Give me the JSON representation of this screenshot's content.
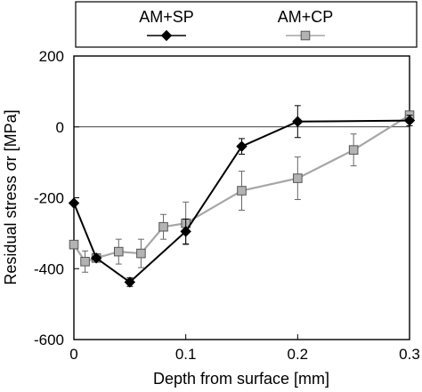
{
  "chart_data": {
    "type": "line",
    "xlabel": "Depth from surface [mm]",
    "ylabel": "Residual stress σr [MPa]",
    "xlim": [
      0,
      0.3
    ],
    "ylim": [
      -600,
      200
    ],
    "x_ticks": [
      {
        "value": 0,
        "label": "0"
      },
      {
        "value": 0.1,
        "label": "0.1"
      },
      {
        "value": 0.2,
        "label": "0.2"
      },
      {
        "value": 0.3,
        "label": "0.3"
      }
    ],
    "y_ticks": [
      {
        "value": 200,
        "label": "200"
      },
      {
        "value": 0,
        "label": "0"
      },
      {
        "value": -200,
        "label": "-200"
      },
      {
        "value": -400,
        "label": "-400"
      },
      {
        "value": -600,
        "label": "-600"
      }
    ],
    "grid": false,
    "zero_line": true,
    "legend_position": "top",
    "series": [
      {
        "name": "AM+SP",
        "marker": "diamond",
        "line_color": "#000000",
        "marker_fill": "#000000",
        "points": [
          {
            "x": 0,
            "y": -215,
            "err": 0
          },
          {
            "x": 0.02,
            "y": -370,
            "err": 0
          },
          {
            "x": 0.05,
            "y": -438,
            "err": 12
          },
          {
            "x": 0.1,
            "y": -295,
            "err": 35
          },
          {
            "x": 0.15,
            "y": -55,
            "err": 22
          },
          {
            "x": 0.2,
            "y": 15,
            "err": 45
          },
          {
            "x": 0.3,
            "y": 18,
            "err": 15
          }
        ]
      },
      {
        "name": "AM+CP",
        "marker": "square",
        "line_color": "#a6a6a6",
        "marker_fill": "#b3b3b3",
        "points": [
          {
            "x": 0,
            "y": -332,
            "err": 0
          },
          {
            "x": 0.01,
            "y": -380,
            "err": 30
          },
          {
            "x": 0.02,
            "y": -370,
            "err": 0
          },
          {
            "x": 0.04,
            "y": -352,
            "err": 35
          },
          {
            "x": 0.06,
            "y": -357,
            "err": 40
          },
          {
            "x": 0.08,
            "y": -282,
            "err": 35
          },
          {
            "x": 0.1,
            "y": -272,
            "err": 60
          },
          {
            "x": 0.15,
            "y": -180,
            "err": 55
          },
          {
            "x": 0.2,
            "y": -145,
            "err": 60
          },
          {
            "x": 0.25,
            "y": -65,
            "err": 45
          },
          {
            "x": 0.3,
            "y": 33,
            "err": 0
          }
        ]
      }
    ]
  }
}
